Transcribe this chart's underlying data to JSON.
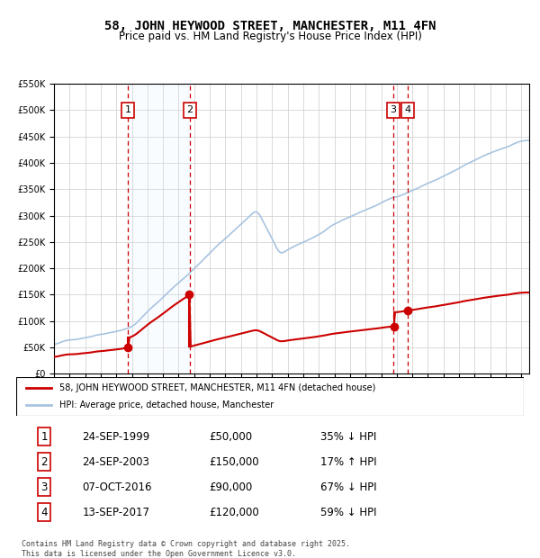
{
  "title": "58, JOHN HEYWOOD STREET, MANCHESTER, M11 4FN",
  "subtitle": "Price paid vs. HM Land Registry's House Price Index (HPI)",
  "legend_line1": "58, JOHN HEYWOOD STREET, MANCHESTER, M11 4FN (detached house)",
  "legend_line2": "HPI: Average price, detached house, Manchester",
  "transactions": [
    {
      "num": 1,
      "date": "24-SEP-1999",
      "price": 50000,
      "pct": "35%",
      "dir": "↓",
      "x_year": 1999.73
    },
    {
      "num": 2,
      "date": "24-SEP-2003",
      "price": 150000,
      "pct": "17%",
      "dir": "↑",
      "x_year": 2003.73
    },
    {
      "num": 3,
      "date": "07-OCT-2016",
      "price": 90000,
      "pct": "67%",
      "dir": "↓",
      "x_year": 2016.77
    },
    {
      "num": 4,
      "date": "13-SEP-2017",
      "price": 120000,
      "pct": "59%",
      "dir": "↓",
      "x_year": 2017.71
    }
  ],
  "footer": "Contains HM Land Registry data © Crown copyright and database right 2025.\nThis data is licensed under the Open Government Licence v3.0.",
  "hpi_color": "#a8c4e0",
  "price_color": "#cc0000",
  "transaction_color": "#cc0000",
  "vline_color": "#cc0000",
  "shade_color": "#ddeeff",
  "ylim": [
    0,
    550000
  ],
  "xlim_start": 1995.0,
  "xlim_end": 2025.5
}
